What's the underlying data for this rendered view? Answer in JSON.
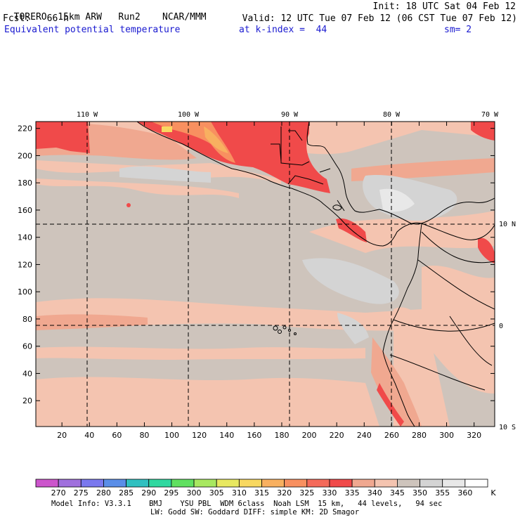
{
  "header": {
    "model": "TORERO",
    "resolution": "15km ARW",
    "run": "Run2",
    "org": "NCAR/MMM",
    "init": "Init: 18 UTC Sat 04 Feb 12",
    "forecast_label": "Fcst:",
    "forecast_hours": "66 h",
    "valid": "Valid: 12 UTC Tue 07 Feb 12 (06 CST Tue 07 Feb 12)",
    "field": "Equivalent potential temperature",
    "level": "at k-index =  44",
    "smoothing": "sm= 2"
  },
  "map": {
    "longitude_labels": [
      {
        "lon": -110,
        "label": "110 W"
      },
      {
        "lon": -100,
        "label": "100 W"
      },
      {
        "lon": -90,
        "label": "90 W"
      },
      {
        "lon": -80,
        "label": "80 W"
      },
      {
        "lon": -70,
        "label": "70 W"
      }
    ],
    "latitude_labels": [
      {
        "lat": 10,
        "label": "10 N"
      },
      {
        "lat": 0,
        "label": "0"
      },
      {
        "lat": -10,
        "label": "10 S"
      }
    ],
    "x_ticks": [
      20,
      40,
      60,
      80,
      100,
      120,
      140,
      160,
      180,
      200,
      220,
      240,
      260,
      280,
      300,
      320
    ],
    "y_ticks": [
      20,
      40,
      60,
      80,
      100,
      120,
      140,
      160,
      180,
      200,
      220
    ],
    "x_range": [
      1,
      335
    ],
    "y_range": [
      1,
      225
    ]
  },
  "colorbar": {
    "unit": "K",
    "levels": [
      270,
      275,
      280,
      285,
      290,
      295,
      300,
      305,
      310,
      315,
      320,
      325,
      330,
      335,
      340,
      345,
      350,
      355,
      360
    ],
    "colors": [
      "#cc55cc",
      "#a070dd",
      "#7a78ee",
      "#5a8ee8",
      "#30c0c0",
      "#30d8a0",
      "#60e060",
      "#a8e860",
      "#e8e860",
      "#f8d860",
      "#f8b060",
      "#f89060",
      "#f46a5a",
      "#f04a4a",
      "#f0a890",
      "#f4c4b0",
      "#cec4bc",
      "#d4d4d4",
      "#e8e8e8",
      "#ffffff"
    ]
  },
  "footer": {
    "line1": "Model Info: V3.3.1    BMJ    YSU PBL  WDM 6class  Noah LSM  15 km,   44 levels,   94 sec",
    "line2": "LW: Godd SW: Goddard DIFF: simple KM: 2D Smagor"
  }
}
